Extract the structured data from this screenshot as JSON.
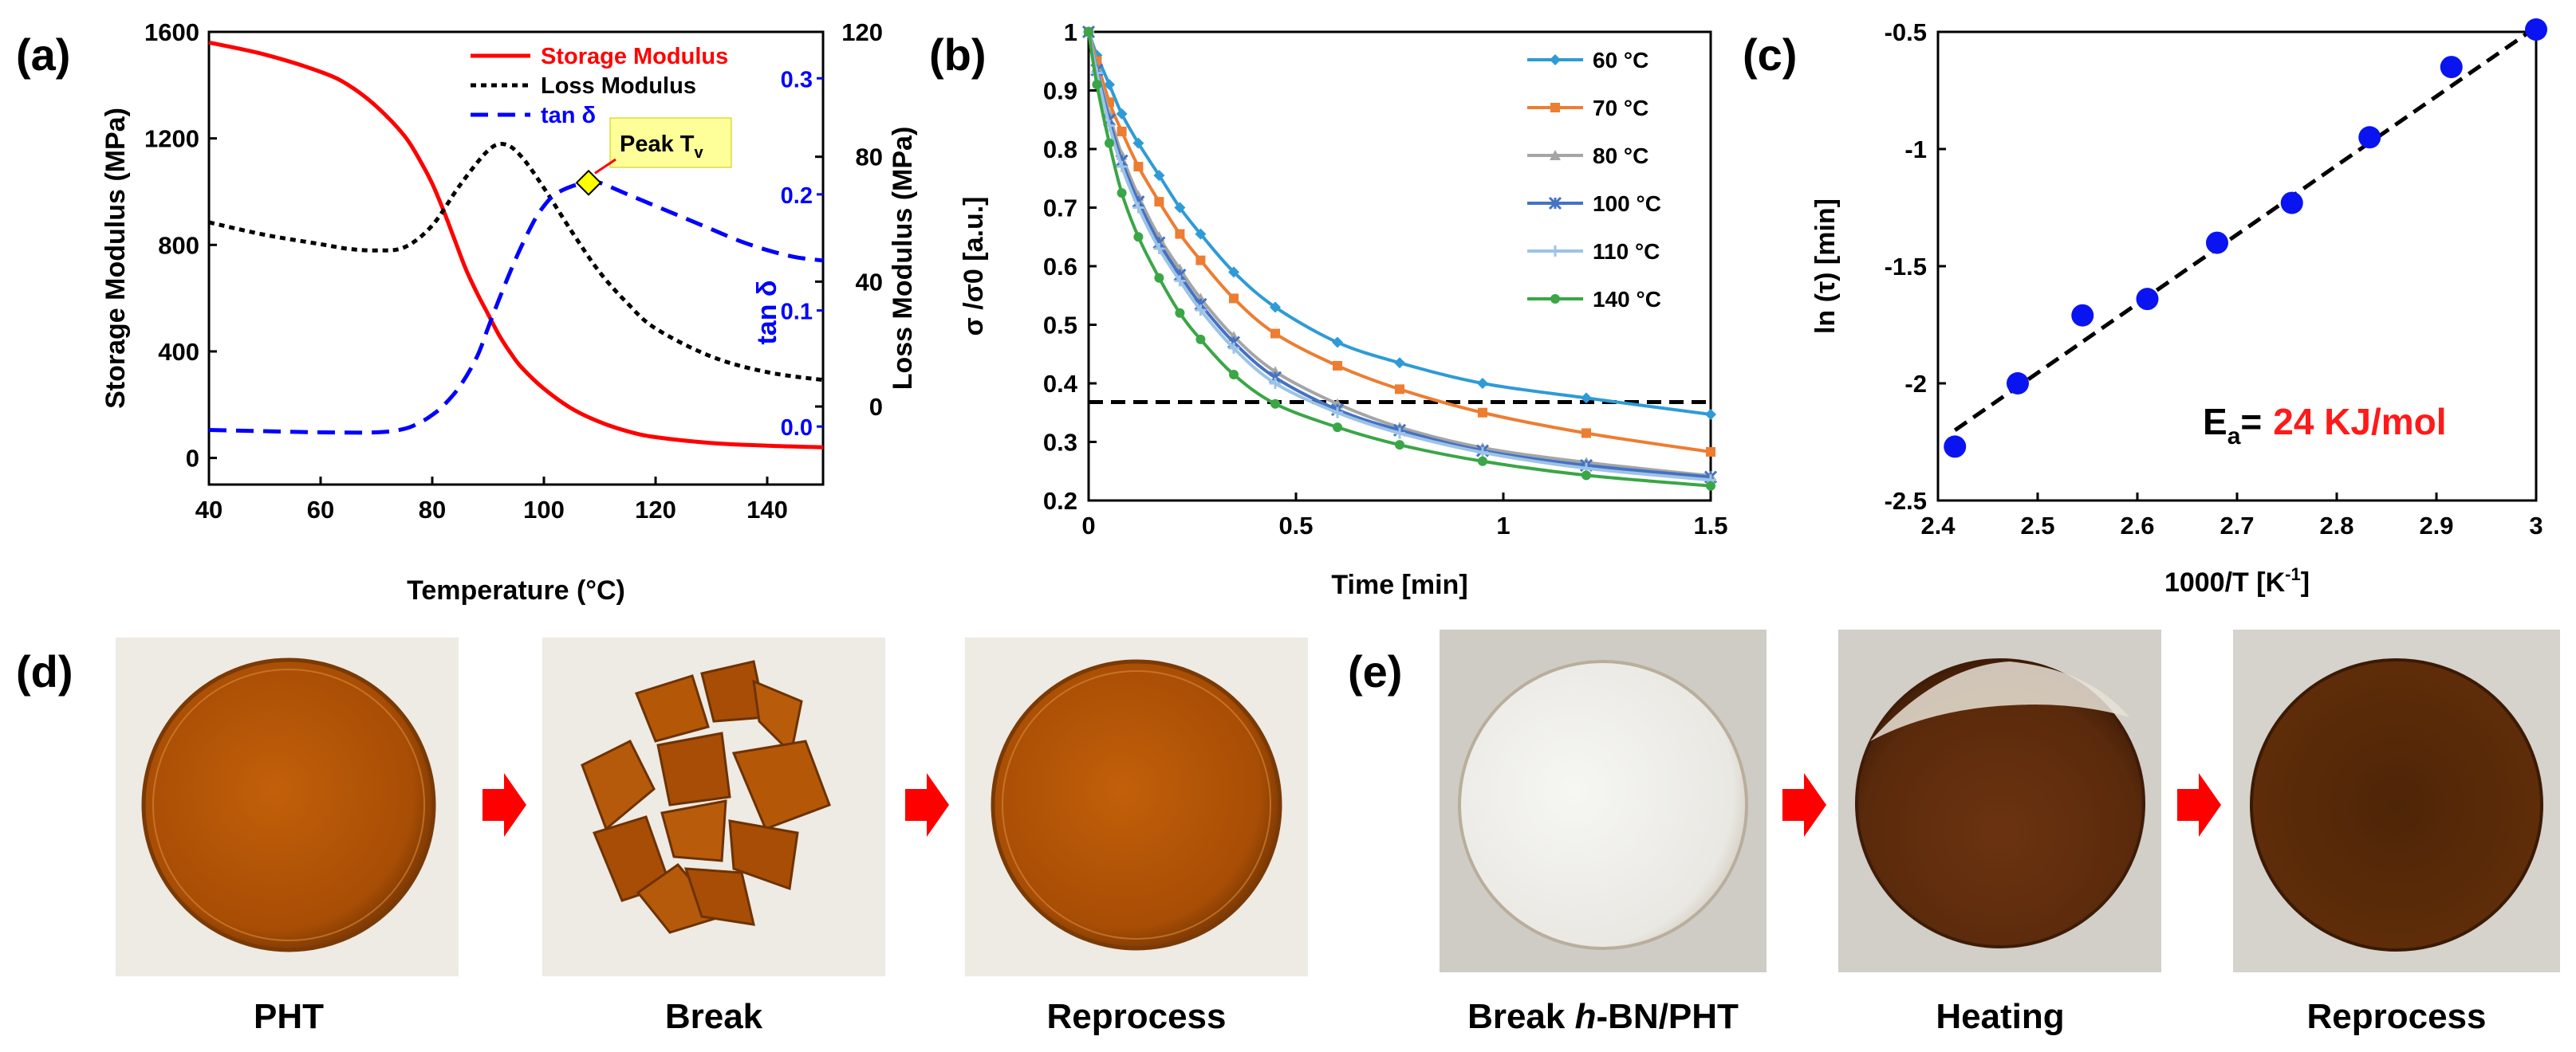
{
  "panel_labels": {
    "a": "(a)",
    "b": "(b)",
    "c": "(c)",
    "d": "(d)",
    "e": "(e)"
  },
  "colors": {
    "storage": "#ff0000",
    "loss": "#000000",
    "tan": "#0000ff",
    "peak_box": "#ffff99",
    "c_points": "#0a14f0",
    "c_highlight": "#ff1a1a",
    "arrow": "#ff0000"
  },
  "chart_data": [
    {
      "id": "a",
      "type": "line",
      "xlabel": "Temperature (°C)",
      "ylabel_left": "Storage Modulus (MPa)",
      "ylabel_right": "Loss Modulus (MPa)",
      "ylabel_tan": "tan δ",
      "xlim": [
        40,
        150
      ],
      "xticks": [
        40,
        60,
        80,
        100,
        120,
        140
      ],
      "ylim_left": [
        -100,
        1600
      ],
      "yticks_left": [
        0,
        400,
        800,
        1200,
        1600
      ],
      "ylim_right": [
        -25,
        120
      ],
      "yticks_right": [
        0,
        40,
        80,
        120
      ],
      "ylim_tan": [
        -0.05,
        0.34
      ],
      "yticks_tan": [
        0.0,
        0.1,
        0.2,
        0.3
      ],
      "legend_position": "top-right",
      "annotation": {
        "label": "Peak T",
        "subscript": "v",
        "x": 108,
        "tan": 0.21
      },
      "series": [
        {
          "name": "Storage Modulus",
          "axis": "left",
          "style": "solid",
          "x": [
            40,
            50,
            60,
            65,
            70,
            75,
            78,
            80,
            82,
            84,
            86,
            88,
            90,
            92,
            94,
            96,
            100,
            105,
            110,
            115,
            120,
            130,
            140,
            150
          ],
          "y": [
            1560,
            1515,
            1450,
            1400,
            1320,
            1210,
            1110,
            1030,
            930,
            820,
            710,
            620,
            540,
            460,
            395,
            340,
            260,
            185,
            135,
            100,
            78,
            56,
            46,
            40
          ]
        },
        {
          "name": "Loss Modulus",
          "axis": "right",
          "style": "dotted",
          "x": [
            40,
            50,
            60,
            65,
            70,
            75,
            80,
            85,
            90,
            93,
            96,
            100,
            105,
            110,
            115,
            120,
            130,
            140,
            150
          ],
          "y": [
            59,
            55,
            52,
            50.5,
            50,
            51,
            58,
            71,
            82,
            84,
            80,
            70,
            56,
            43,
            33,
            25,
            16,
            11,
            8.5
          ]
        },
        {
          "name": "tan δ",
          "axis": "tan",
          "style": "dashed",
          "x": [
            40,
            50,
            60,
            70,
            75,
            78,
            80,
            82,
            85,
            88,
            90,
            92,
            95,
            98,
            100,
            102,
            105,
            108,
            110,
            115,
            120,
            125,
            130,
            135,
            140,
            145,
            150
          ],
          "y": [
            -0.003,
            -0.004,
            -0.005,
            -0.005,
            -0.002,
            0.004,
            0.01,
            0.018,
            0.035,
            0.06,
            0.085,
            0.11,
            0.145,
            0.175,
            0.19,
            0.2,
            0.207,
            0.21,
            0.21,
            0.2,
            0.19,
            0.18,
            0.17,
            0.16,
            0.152,
            0.146,
            0.143
          ]
        }
      ]
    },
    {
      "id": "b",
      "type": "line",
      "xlabel": "Time [min]",
      "ylabel": "σ /σ0 [a.u.]",
      "xlim": [
        0,
        1.5
      ],
      "xticks": [
        0,
        0.5,
        1,
        1.5
      ],
      "ylim": [
        0.2,
        1
      ],
      "yticks": [
        0.2,
        0.3,
        0.4,
        0.5,
        0.6,
        0.7,
        0.8,
        0.9,
        1
      ],
      "reference_line": 0.368,
      "legend_position": "top-right",
      "series": [
        {
          "name": "60 °C",
          "color": "#2e9bd6",
          "marker": "diamond",
          "x": [
            0,
            0.02,
            0.05,
            0.08,
            0.12,
            0.17,
            0.22,
            0.27,
            0.35,
            0.45,
            0.6,
            0.75,
            0.95,
            1.2,
            1.5
          ],
          "y": [
            1,
            0.96,
            0.91,
            0.86,
            0.81,
            0.755,
            0.7,
            0.655,
            0.59,
            0.53,
            0.47,
            0.435,
            0.4,
            0.375,
            0.347
          ]
        },
        {
          "name": "70 °C",
          "color": "#ed7d31",
          "marker": "square",
          "x": [
            0,
            0.02,
            0.05,
            0.08,
            0.12,
            0.17,
            0.22,
            0.27,
            0.35,
            0.45,
            0.6,
            0.75,
            0.95,
            1.2,
            1.5
          ],
          "y": [
            1,
            0.95,
            0.88,
            0.83,
            0.77,
            0.71,
            0.655,
            0.61,
            0.545,
            0.485,
            0.43,
            0.39,
            0.35,
            0.315,
            0.283
          ]
        },
        {
          "name": "80 °C",
          "color": "#a5a5a5",
          "marker": "triangle",
          "x": [
            0,
            0.02,
            0.05,
            0.08,
            0.12,
            0.17,
            0.22,
            0.27,
            0.35,
            0.45,
            0.6,
            0.75,
            0.95,
            1.2,
            1.5
          ],
          "y": [
            1,
            0.94,
            0.86,
            0.79,
            0.72,
            0.65,
            0.595,
            0.545,
            0.48,
            0.42,
            0.365,
            0.325,
            0.29,
            0.265,
            0.242
          ]
        },
        {
          "name": "100 °C",
          "color": "#4472c4",
          "marker": "asterisk",
          "x": [
            0,
            0.02,
            0.05,
            0.08,
            0.12,
            0.17,
            0.22,
            0.27,
            0.35,
            0.45,
            0.6,
            0.75,
            0.95,
            1.2,
            1.5
          ],
          "y": [
            1,
            0.935,
            0.85,
            0.78,
            0.71,
            0.64,
            0.585,
            0.535,
            0.47,
            0.41,
            0.355,
            0.32,
            0.285,
            0.26,
            0.24
          ]
        },
        {
          "name": "110 °C",
          "color": "#9dc3e6",
          "marker": "plus",
          "x": [
            0,
            0.02,
            0.05,
            0.08,
            0.12,
            0.17,
            0.22,
            0.27,
            0.35,
            0.45,
            0.6,
            0.75,
            0.95,
            1.2,
            1.5
          ],
          "y": [
            1,
            0.93,
            0.84,
            0.77,
            0.7,
            0.63,
            0.575,
            0.525,
            0.46,
            0.4,
            0.35,
            0.315,
            0.282,
            0.255,
            0.235
          ]
        },
        {
          "name": "140 °C",
          "color": "#3aa646",
          "marker": "circle",
          "x": [
            0,
            0.02,
            0.05,
            0.08,
            0.12,
            0.17,
            0.22,
            0.27,
            0.35,
            0.45,
            0.6,
            0.75,
            0.95,
            1.2,
            1.5
          ],
          "y": [
            1,
            0.91,
            0.81,
            0.725,
            0.65,
            0.58,
            0.52,
            0.475,
            0.415,
            0.365,
            0.325,
            0.295,
            0.267,
            0.243,
            0.225
          ]
        }
      ]
    },
    {
      "id": "c",
      "type": "scatter",
      "xlabel": "1000/T [K",
      "xlabel_sup": "-1",
      "xlabel_end": "]",
      "ylabel": "ln (τ) [min]",
      "xlim": [
        2.4,
        3.0
      ],
      "xticks": [
        2.4,
        2.5,
        2.6,
        2.7,
        2.8,
        2.9,
        3.0
      ],
      "xtick_labels": [
        "2.4",
        "2.5",
        "2.6",
        "2.7",
        "2.8",
        "2.9",
        "3"
      ],
      "ylim": [
        -2.5,
        -0.5
      ],
      "yticks": [
        -2.5,
        -2.0,
        -1.5,
        -1.0,
        -0.5
      ],
      "ytick_labels": [
        "-2.5",
        "-2",
        "-1.5",
        "-1",
        "-0.5"
      ],
      "x": [
        2.417,
        2.48,
        2.545,
        2.61,
        2.68,
        2.755,
        2.833,
        2.915,
        3.0
      ],
      "y": [
        -2.27,
        -2.0,
        -1.71,
        -1.64,
        -1.4,
        -1.23,
        -0.95,
        -0.65,
        -0.49
      ],
      "fit": {
        "x": [
          2.417,
          3.0
        ],
        "y": [
          -2.2,
          -0.48
        ]
      },
      "annotation_label": "E",
      "annotation_sub": "a",
      "annotation_eq": "=",
      "annotation_value": "24 KJ/mol"
    }
  ],
  "photos_d": {
    "captions": [
      "PHT",
      "Break",
      "Reprocess"
    ]
  },
  "photos_e": {
    "captions": [
      "Break ",
      "h",
      "-BN/PHT",
      "Heating",
      "Reprocess"
    ]
  }
}
